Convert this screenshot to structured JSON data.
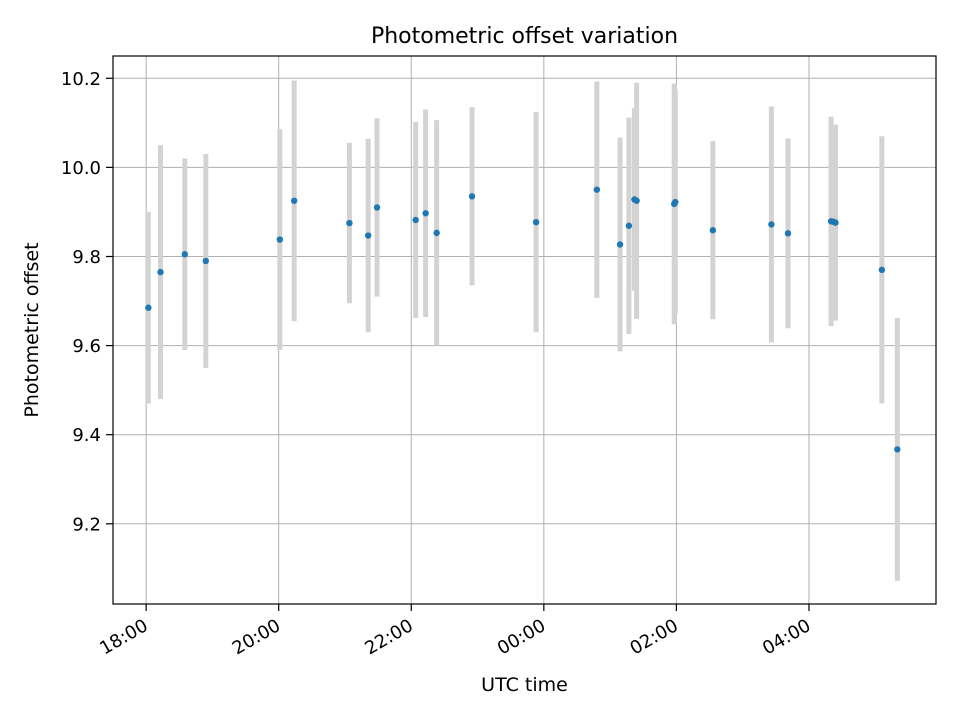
{
  "chart_data": {
    "type": "scatter",
    "title": "Photometric offset variation",
    "xlabel": "UTC time",
    "ylabel": "Photometric offset",
    "x_axis_kind": "time",
    "xlim": [
      "17:30",
      "05:55"
    ],
    "ylim": [
      9.02,
      10.25
    ],
    "x_ticks": [
      "18:00",
      "20:00",
      "22:00",
      "00:00",
      "02:00",
      "04:00"
    ],
    "y_ticks": [
      9.2,
      9.4,
      9.6,
      9.8,
      10.0,
      10.2
    ],
    "grid": true,
    "colors": {
      "point": "#1f77b4",
      "errorbar": "#d3d3d3",
      "grid": "#b0b0b0"
    },
    "series": [
      {
        "points": [
          {
            "time": "18:02",
            "y": 9.685,
            "err": 0.215
          },
          {
            "time": "18:13",
            "y": 9.765,
            "err": 0.285
          },
          {
            "time": "18:35",
            "y": 9.805,
            "err": 0.215
          },
          {
            "time": "18:54",
            "y": 9.79,
            "err": 0.24
          },
          {
            "time": "20:01",
            "y": 9.838,
            "err": 0.248
          },
          {
            "time": "20:14",
            "y": 9.925,
            "err": 0.27
          },
          {
            "time": "21:04",
            "y": 9.875,
            "err": 0.18
          },
          {
            "time": "21:21",
            "y": 9.847,
            "err": 0.217
          },
          {
            "time": "21:29",
            "y": 9.91,
            "err": 0.2
          },
          {
            "time": "22:04",
            "y": 9.882,
            "err": 0.22
          },
          {
            "time": "22:13",
            "y": 9.897,
            "err": 0.233
          },
          {
            "time": "22:23",
            "y": 9.853,
            "err": 0.253
          },
          {
            "time": "22:55",
            "y": 9.935,
            "err": 0.2
          },
          {
            "time": "23:53",
            "y": 9.877,
            "err": 0.247
          },
          {
            "time": "00:48",
            "y": 9.95,
            "err": 0.243
          },
          {
            "time": "01:09",
            "y": 9.827,
            "err": 0.24
          },
          {
            "time": "01:17",
            "y": 9.869,
            "err": 0.243
          },
          {
            "time": "01:22",
            "y": 9.928,
            "err": 0.205
          },
          {
            "time": "01:24",
            "y": 9.925,
            "err": 0.265
          },
          {
            "time": "01:58",
            "y": 9.918,
            "err": 0.27
          },
          {
            "time": "01:59",
            "y": 9.922,
            "err": 0.25
          },
          {
            "time": "02:33",
            "y": 9.859,
            "err": 0.2
          },
          {
            "time": "03:26",
            "y": 9.872,
            "err": 0.265
          },
          {
            "time": "03:41",
            "y": 9.852,
            "err": 0.213
          },
          {
            "time": "04:20",
            "y": 9.879,
            "err": 0.235
          },
          {
            "time": "04:22",
            "y": 9.878,
            "err": 0.215
          },
          {
            "time": "04:24",
            "y": 9.876,
            "err": 0.22
          },
          {
            "time": "05:06",
            "y": 9.77,
            "err": 0.3
          },
          {
            "time": "05:20",
            "y": 9.367,
            "err": 0.295
          }
        ]
      }
    ]
  }
}
